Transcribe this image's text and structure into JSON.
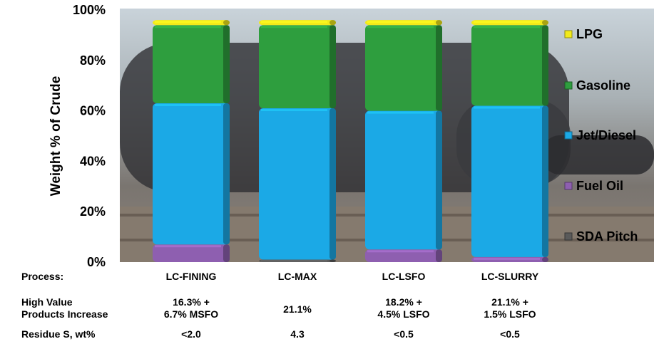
{
  "chart_data": {
    "type": "bar",
    "stacked": true,
    "ylabel": "Weight % of Crude",
    "ylim": [
      0,
      100
    ],
    "yticks": [
      "0%",
      "20%",
      "40%",
      "60%",
      "80%",
      "100%"
    ],
    "categories": [
      "LC-FINING",
      "LC-MAX",
      "LC-LSFO",
      "LC-SLURRY"
    ],
    "series": [
      {
        "name": "SDA Pitch",
        "color": "#5a5a5a",
        "values": [
          0,
          1,
          0,
          0
        ]
      },
      {
        "name": "Fuel Oil",
        "color": "#8e5fb0",
        "values": [
          7,
          0,
          5,
          2
        ]
      },
      {
        "name": "Jet/Diesel",
        "color": "#1ba9e6",
        "values": [
          56,
          60,
          55,
          60
        ]
      },
      {
        "name": "Gasoline",
        "color": "#2e9e3e",
        "values": [
          31,
          33,
          34,
          32
        ]
      },
      {
        "name": "LPG",
        "color": "#f2ea1a",
        "values": [
          2,
          2,
          2,
          2
        ]
      }
    ],
    "legend_position": "right",
    "grid": false
  },
  "table": {
    "header_process": "Process:",
    "header_high_value": [
      "High Value",
      "Products Increase"
    ],
    "header_residue": "Residue S, wt%",
    "high_value": [
      [
        "16.3% +",
        "6.7% MSFO"
      ],
      [
        "21.1%"
      ],
      [
        "18.2% +",
        "4.5% LSFO"
      ],
      [
        "21.1% +",
        "1.5% LSFO"
      ]
    ],
    "residue": [
      "<2.0",
      "4.3",
      "<0.5",
      "<0.5"
    ]
  }
}
